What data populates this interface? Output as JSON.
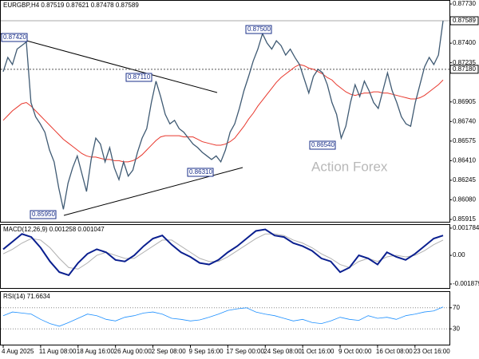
{
  "chart_data": [
    {
      "type": "price",
      "title": "EURGBP,H4  0.87519 0.87621 0.87478 0.87589",
      "watermark": "Action Forex",
      "values": [
        0.8716,
        0.8728,
        0.8722,
        0.8735,
        0.8738,
        0.8741,
        0.869,
        0.8678,
        0.8672,
        0.8665,
        0.865,
        0.864,
        0.8618,
        0.86,
        0.8622,
        0.8635,
        0.8645,
        0.863,
        0.8615,
        0.8642,
        0.866,
        0.8655,
        0.864,
        0.8652,
        0.8635,
        0.8625,
        0.864,
        0.8628,
        0.8633,
        0.8648,
        0.866,
        0.8668,
        0.869,
        0.8708,
        0.8695,
        0.868,
        0.8672,
        0.8675,
        0.8668,
        0.8665,
        0.866,
        0.8655,
        0.8652,
        0.8648,
        0.8645,
        0.8642,
        0.8645,
        0.864,
        0.865,
        0.8665,
        0.8672,
        0.8685,
        0.87,
        0.8712,
        0.8725,
        0.8735,
        0.8748,
        0.874,
        0.8735,
        0.8742,
        0.8738,
        0.873,
        0.8735,
        0.8728,
        0.8722,
        0.871,
        0.8698,
        0.8712,
        0.8718,
        0.8715,
        0.8705,
        0.869,
        0.868,
        0.866,
        0.867,
        0.869,
        0.8705,
        0.8695,
        0.8708,
        0.87,
        0.869,
        0.8685,
        0.87,
        0.8715,
        0.87,
        0.869,
        0.8678,
        0.8672,
        0.867,
        0.869,
        0.8705,
        0.872,
        0.8728,
        0.8722,
        0.873,
        0.87589
      ],
      "color": "#3f5a73",
      "ma_values": [
        0.8675,
        0.8679,
        0.8683,
        0.8686,
        0.8689,
        0.869,
        0.8687,
        0.8683,
        0.8679,
        0.8675,
        0.8671,
        0.8667,
        0.8663,
        0.8659,
        0.8656,
        0.8653,
        0.865,
        0.8647,
        0.8645,
        0.8644,
        0.8644,
        0.8643,
        0.8642,
        0.8642,
        0.8641,
        0.8641,
        0.864,
        0.864,
        0.8641,
        0.8643,
        0.8646,
        0.865,
        0.8654,
        0.8658,
        0.8661,
        0.8662,
        0.8662,
        0.8662,
        0.8662,
        0.8661,
        0.8661,
        0.8661,
        0.8659,
        0.8657,
        0.8656,
        0.8655,
        0.8654,
        0.8654,
        0.8655,
        0.8657,
        0.866,
        0.8665,
        0.867,
        0.8676,
        0.8681,
        0.8687,
        0.8692,
        0.8697,
        0.8702,
        0.8707,
        0.8711,
        0.8714,
        0.8717,
        0.872,
        0.8722,
        0.8721,
        0.8719,
        0.8718,
        0.8716,
        0.8714,
        0.8711,
        0.8709,
        0.8705,
        0.8702,
        0.8699,
        0.8697,
        0.8696,
        0.8697,
        0.8698,
        0.8698,
        0.8699,
        0.8699,
        0.8698,
        0.8698,
        0.8697,
        0.8696,
        0.8695,
        0.8694,
        0.8693,
        0.8693,
        0.8694,
        0.8696,
        0.8699,
        0.8702,
        0.8705,
        0.8709
      ],
      "ma_color": "#e8372c",
      "ylim": [
        0.85895,
        0.87757
      ],
      "yticks": [
        {
          "value": 0.8773,
          "label": "0.87730"
        },
        {
          "value": 0.87565,
          "label": "0.87565"
        },
        {
          "value": 0.874,
          "label": "0.87400"
        },
        {
          "value": 0.87235,
          "label": "0.87235"
        },
        {
          "value": 0.86905,
          "label": "0.86905"
        },
        {
          "value": 0.8674,
          "label": "0.86740"
        },
        {
          "value": 0.86575,
          "label": "0.86575"
        },
        {
          "value": 0.8641,
          "label": "0.86410"
        },
        {
          "value": 0.86245,
          "label": "0.86245"
        },
        {
          "value": 0.8608,
          "label": "0.86080"
        },
        {
          "value": 0.85915,
          "label": "0.85915"
        }
      ],
      "markers": [
        {
          "value": 0.87589,
          "label": "0.87589",
          "line_style": "solid"
        },
        {
          "value": 0.8718,
          "label": "0.87180",
          "line_style": "dashed"
        }
      ],
      "annotations": [
        "0.87420",
        "0.87110",
        "0.87500",
        "0.86310",
        "0.85950",
        "0.86540"
      ],
      "grid": false
    },
    {
      "type": "macd",
      "title": "MACD(12,26,9) 0.001258 0.001047",
      "values": [
        0.0004,
        0.0009,
        0.0014,
        0.0012,
        0.0005,
        -0.0004,
        -0.0011,
        -0.0013,
        -0.0005,
        0.0001,
        0.0004,
        0.0002,
        -0.0003,
        -0.0004,
        0.0,
        0.0006,
        0.0011,
        0.0013,
        0.0007,
        0.0002,
        -0.0001,
        -0.0005,
        -0.0006,
        -0.0003,
        0.0002,
        0.0006,
        0.0011,
        0.0016,
        0.0017,
        0.0013,
        0.0012,
        0.0008,
        0.0006,
        0.0003,
        -0.0002,
        -0.0004,
        -0.0011,
        -0.0008,
        0.0,
        -0.0002,
        -0.0006,
        0.0002,
        -0.0001,
        -0.0003,
        0.0001,
        0.0006,
        0.0011,
        0.0013
      ],
      "color": "#0a1f8f",
      "signal_values": [
        0.0001,
        0.0004,
        0.0008,
        0.0011,
        0.001,
        0.0005,
        -0.0002,
        -0.0008,
        -0.0009,
        -0.0005,
        0.0,
        0.0002,
        0.0,
        -0.0002,
        -0.0002,
        0.0002,
        0.0006,
        0.001,
        0.001,
        0.0006,
        0.0002,
        -0.0002,
        -0.0004,
        -0.0004,
        -0.0001,
        0.0003,
        0.0007,
        0.0011,
        0.0014,
        0.0014,
        0.0013,
        0.001,
        0.0008,
        0.0005,
        0.0001,
        -0.0002,
        -0.0006,
        -0.0008,
        -0.0004,
        -0.0002,
        -0.0004,
        -0.0001,
        0.0,
        -0.0001,
        0.0,
        0.0003,
        0.0007,
        0.001
      ],
      "signal_color": "#b0b0b0",
      "ylim": [
        -0.00214,
        0.00199
      ],
      "yticks": [
        0.001784,
        {
          "value": 0,
          "label": "0.00"
        },
        -0.001879
      ],
      "grid": false
    },
    {
      "type": "rsi",
      "title": "RSI(14) 71.6634",
      "categories": [
        "4 Aug 2025",
        null,
        null,
        null,
        "11 Aug 08:00",
        null,
        null,
        null,
        "18 Aug 16:00",
        null,
        null,
        null,
        "26 Aug 00:00",
        null,
        null,
        null,
        "2 Sep 08:00",
        null,
        null,
        null,
        "9 Sep 16:00",
        null,
        null,
        null,
        "17 Sep 00:00",
        null,
        null,
        null,
        "24 Sep 08:00",
        null,
        null,
        null,
        "1 Oct 16:00",
        null,
        null,
        null,
        "9 Oct 00:00",
        null,
        null,
        null,
        "16 Oct 08:00",
        null,
        null,
        null,
        "23 Oct 16:00",
        null,
        null,
        null
      ],
      "values": [
        55,
        62,
        60,
        58,
        48,
        40,
        35,
        42,
        50,
        58,
        55,
        48,
        45,
        52,
        55,
        60,
        62,
        58,
        50,
        48,
        45,
        47,
        52,
        58,
        65,
        68,
        70,
        62,
        58,
        55,
        50,
        45,
        48,
        42,
        40,
        45,
        52,
        48,
        46,
        55,
        50,
        52,
        48,
        55,
        58,
        62,
        64,
        71.6634
      ],
      "color": "#1e90ff",
      "ylim": [
        0,
        100
      ],
      "yticks": [
        70,
        30
      ],
      "grid": true
    }
  ]
}
